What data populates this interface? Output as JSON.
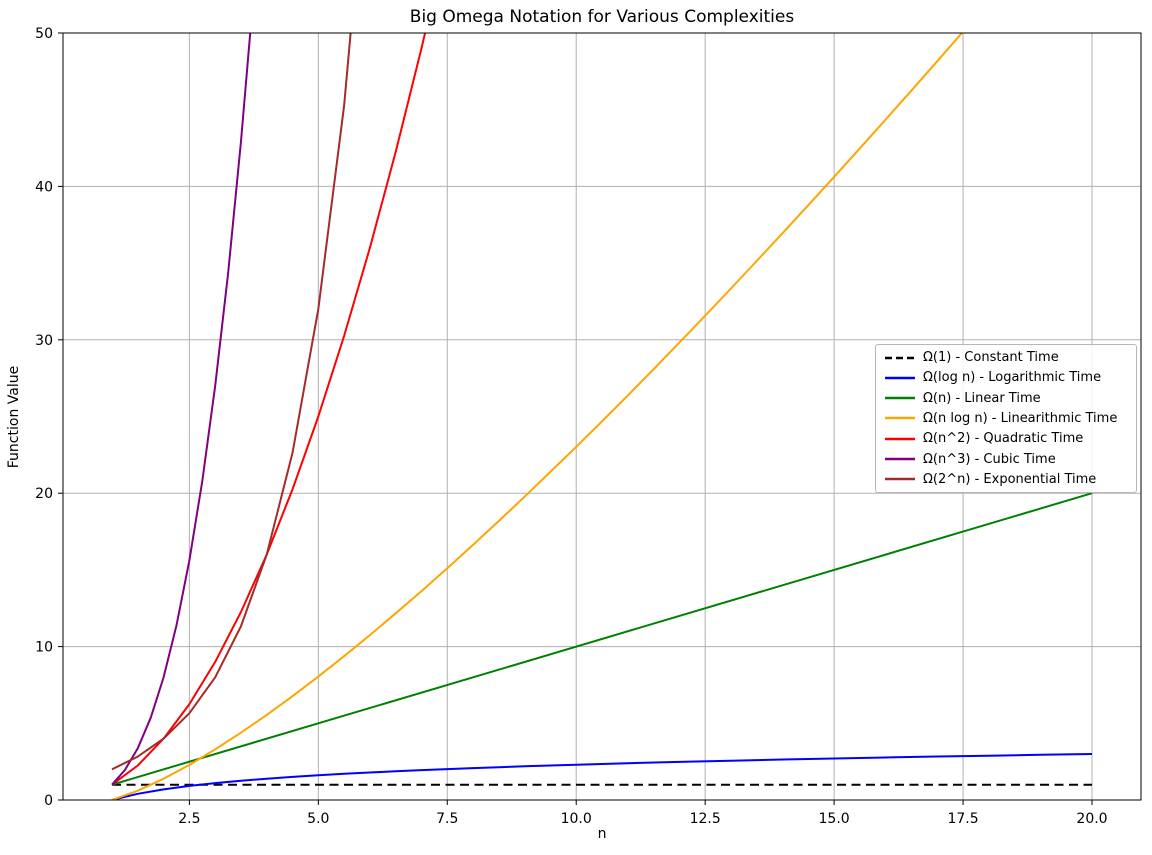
{
  "chart_data": {
    "type": "line",
    "title": "Big Omega Notation for Various Complexities",
    "xlabel": "n",
    "ylabel": "Function Value",
    "xlim": [
      0.05,
      20.95
    ],
    "ylim": [
      0,
      50
    ],
    "xticks": [
      2.5,
      5.0,
      7.5,
      10.0,
      12.5,
      15.0,
      17.5,
      20.0
    ],
    "xtick_labels": [
      "2.5",
      "5.0",
      "7.5",
      "10.0",
      "12.5",
      "15.0",
      "17.5",
      "20.0"
    ],
    "yticks": [
      0,
      10,
      20,
      30,
      40,
      50
    ],
    "ytick_labels": [
      "0",
      "10",
      "20",
      "30",
      "40",
      "50"
    ],
    "grid": true,
    "grid_color": "#b0b0b0",
    "legend_position": "center-right",
    "series": [
      {
        "name": "Ω(1) - Constant Time",
        "color": "#000000",
        "dash": "dashed",
        "x": [
          1,
          20
        ],
        "y": [
          1,
          1
        ]
      },
      {
        "name": "Ω(log n) - Logarithmic Time",
        "color": "#0000ff",
        "dash": "solid",
        "x": [
          1,
          1.5,
          2,
          2.5,
          3,
          3.5,
          4,
          4.5,
          5,
          5.5,
          6,
          6.5,
          7,
          7.5,
          8,
          8.5,
          9,
          9.5,
          10,
          11,
          12,
          13,
          14,
          15,
          16,
          17,
          18,
          19,
          20
        ],
        "y": [
          0,
          0.405,
          0.693,
          0.916,
          1.099,
          1.253,
          1.386,
          1.504,
          1.609,
          1.705,
          1.792,
          1.872,
          1.946,
          2.015,
          2.079,
          2.14,
          2.197,
          2.251,
          2.303,
          2.398,
          2.485,
          2.565,
          2.639,
          2.708,
          2.773,
          2.833,
          2.89,
          2.944,
          2.996
        ]
      },
      {
        "name": "Ω(n) - Linear Time",
        "color": "#008000",
        "dash": "solid",
        "x": [
          1,
          20
        ],
        "y": [
          1,
          20
        ]
      },
      {
        "name": "Ω(n log n) - Linearithmic Time",
        "color": "#ffa500",
        "dash": "solid",
        "x": [
          1,
          1.5,
          2,
          2.5,
          3,
          3.5,
          4,
          4.5,
          5,
          5.5,
          6,
          6.5,
          7,
          7.5,
          8,
          8.5,
          9,
          9.5,
          10,
          10.5,
          11,
          11.5,
          12,
          12.5,
          13,
          13.5,
          14,
          14.5,
          15,
          15.5,
          16,
          16.5,
          17,
          17.5,
          18
        ],
        "y": [
          0,
          0.608,
          1.386,
          2.291,
          3.296,
          4.385,
          5.545,
          6.768,
          8.047,
          9.376,
          10.751,
          12.168,
          13.621,
          15.11,
          16.636,
          18.189,
          19.775,
          21.386,
          23.026,
          24.686,
          26.377,
          28.085,
          29.819,
          31.573,
          33.344,
          35.137,
          36.946,
          38.773,
          40.621,
          42.485,
          44.361,
          46.255,
          48.164,
          50.089,
          52.026
        ]
      },
      {
        "name": "Ω(n^2) - Quadratic Time",
        "color": "#ff0000",
        "dash": "solid",
        "x": [
          1,
          1.5,
          2,
          2.5,
          3,
          3.5,
          4,
          4.5,
          5,
          5.5,
          6,
          6.5,
          7,
          7.5
        ],
        "y": [
          1,
          2.25,
          4,
          6.25,
          9,
          12.25,
          16,
          20.25,
          25,
          30.25,
          36,
          42.25,
          49,
          56.25
        ]
      },
      {
        "name": "Ω(n^3) - Cubic Time",
        "color": "#800080",
        "dash": "solid",
        "x": [
          1,
          1.25,
          1.5,
          1.75,
          2,
          2.25,
          2.5,
          2.75,
          3,
          3.25,
          3.5,
          3.75,
          4
        ],
        "y": [
          1,
          1.953,
          3.375,
          5.359,
          8,
          11.391,
          15.625,
          20.797,
          27,
          34.328,
          42.875,
          52.734,
          64
        ]
      },
      {
        "name": "Ω(2^n) - Exponential Time",
        "color": "#a52a2a",
        "dash": "solid",
        "x": [
          1,
          1.5,
          2,
          2.5,
          3,
          3.5,
          4,
          4.5,
          5,
          5.5,
          6
        ],
        "y": [
          2,
          2.828,
          4,
          5.657,
          8,
          11.314,
          16,
          22.627,
          32,
          45.255,
          64
        ]
      }
    ]
  }
}
